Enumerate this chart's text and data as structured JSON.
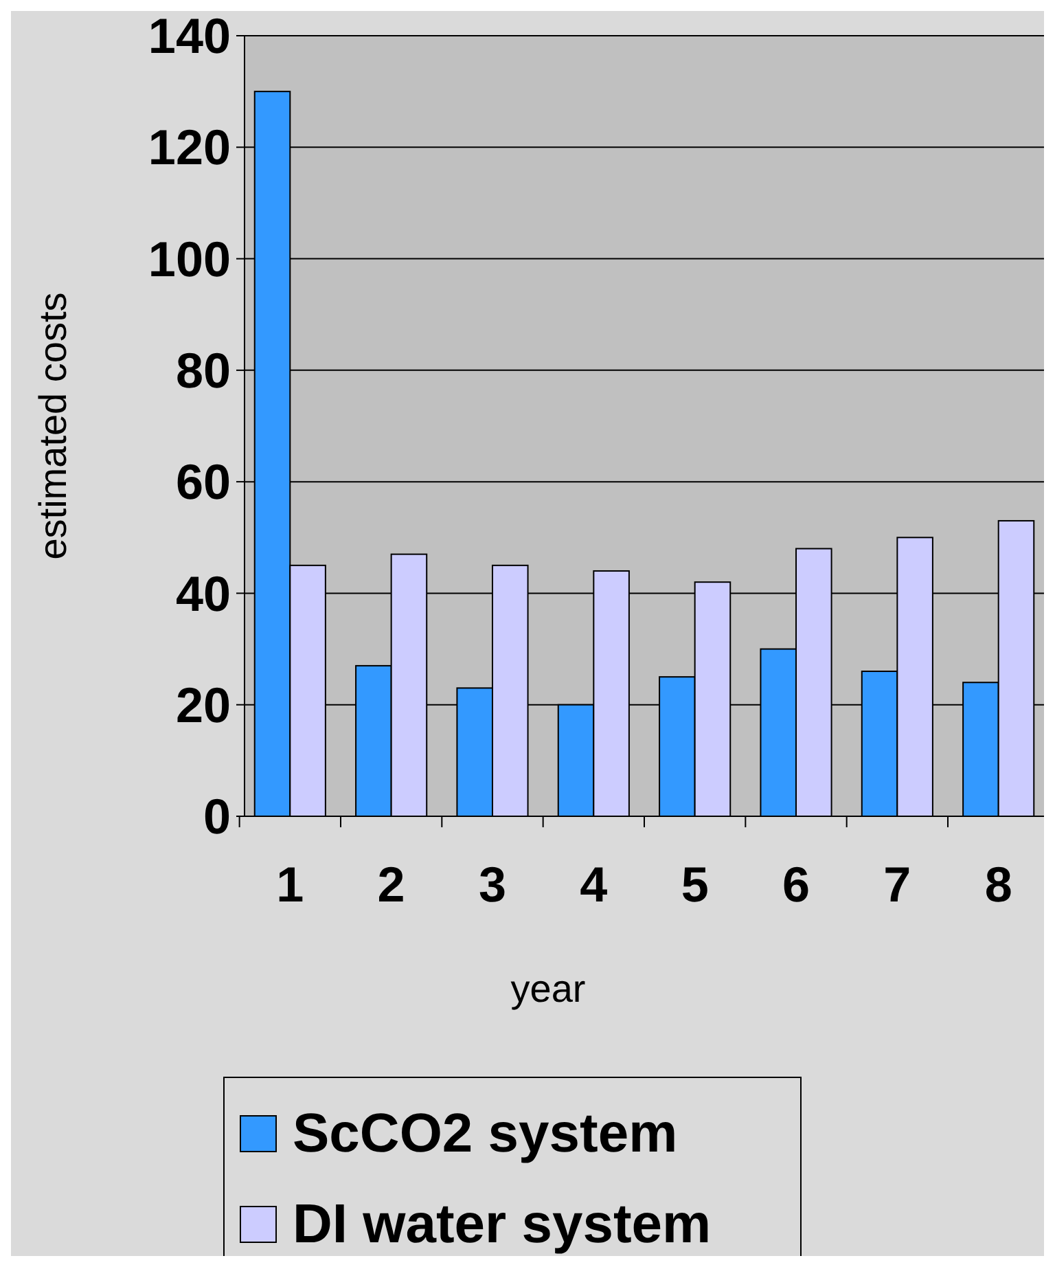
{
  "chart_data": {
    "type": "bar",
    "xlabel": "year",
    "ylabel": "estimated costs",
    "categories": [
      "1",
      "2",
      "3",
      "4",
      "5",
      "6",
      "7",
      "8"
    ],
    "series": [
      {
        "name": "ScCO2 system",
        "color": "#3399ff",
        "values": [
          130,
          27,
          23,
          20,
          25,
          30,
          26,
          24
        ]
      },
      {
        "name": "DI water system",
        "color": "#ccccff",
        "values": [
          45,
          47,
          45,
          44,
          42,
          48,
          50,
          53
        ]
      }
    ],
    "ylim": [
      0,
      140
    ],
    "yticks": [
      0,
      20,
      40,
      60,
      80,
      100,
      120,
      140
    ],
    "grid": "y",
    "legend": "bottom"
  }
}
